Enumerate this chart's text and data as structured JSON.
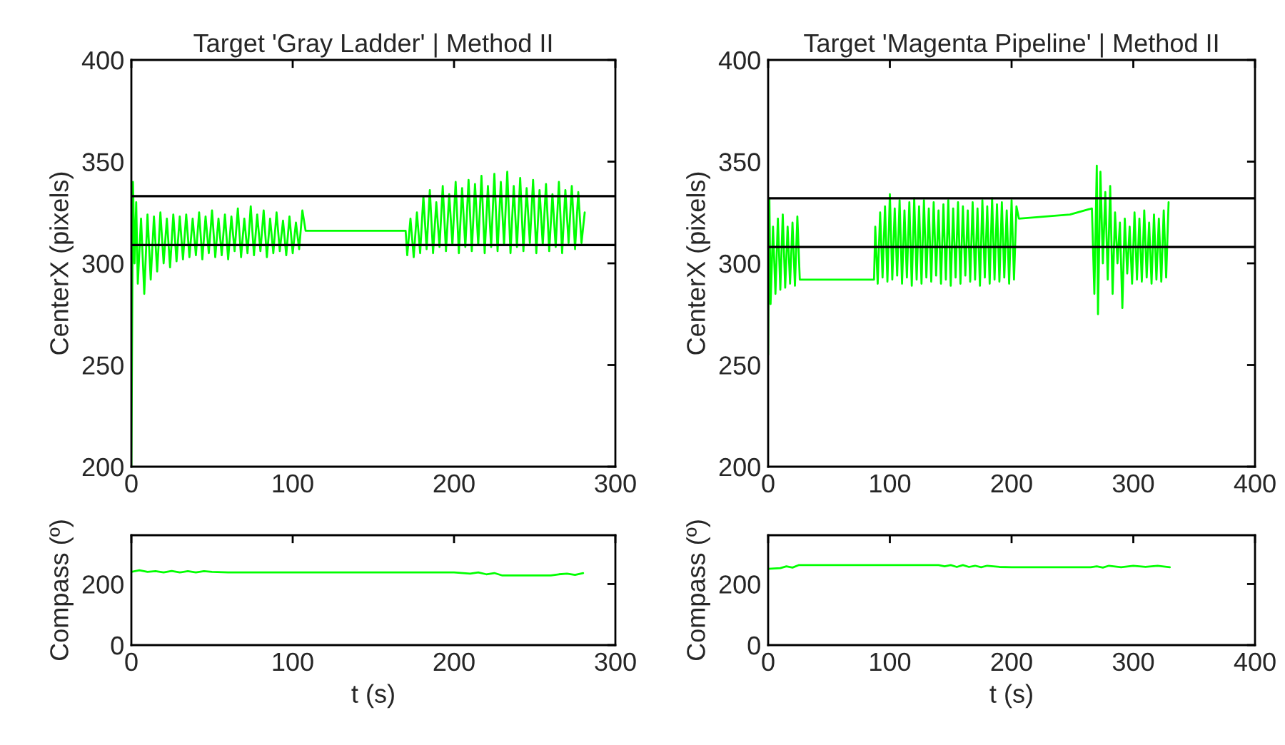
{
  "chart_data": [
    {
      "type": "line",
      "title": "Target 'Gray Ladder' | Method II",
      "ylabel": "CenterX (pixels)",
      "xlim": [
        0,
        300
      ],
      "xticks": [
        0,
        100,
        200,
        300
      ],
      "ylim": [
        200,
        400
      ],
      "yticks": [
        200,
        250,
        300,
        350,
        400
      ],
      "grid": false,
      "ref_lines": [
        {
          "axis": "y",
          "value": 333,
          "color": "#000000"
        },
        {
          "axis": "y",
          "value": 309,
          "color": "#000000"
        }
      ],
      "series": [
        {
          "color": "#00ff00",
          "x": [
            0,
            1,
            2,
            3,
            4,
            6,
            8,
            10,
            12,
            14,
            16,
            18,
            20,
            22,
            24,
            26,
            28,
            30,
            32,
            34,
            36,
            38,
            40,
            42,
            44,
            46,
            48,
            50,
            52,
            54,
            56,
            58,
            60,
            62,
            64,
            66,
            68,
            70,
            72,
            74,
            76,
            78,
            80,
            82,
            84,
            86,
            88,
            90,
            92,
            94,
            96,
            98,
            100,
            102,
            104,
            106,
            108,
            170,
            171,
            173,
            175,
            177,
            179,
            181,
            183,
            185,
            187,
            189,
            191,
            193,
            195,
            197,
            199,
            201,
            203,
            205,
            207,
            209,
            211,
            213,
            215,
            217,
            219,
            221,
            223,
            225,
            227,
            229,
            231,
            233,
            235,
            237,
            239,
            241,
            243,
            245,
            247,
            249,
            251,
            253,
            255,
            257,
            259,
            261,
            263,
            265,
            267,
            269,
            271,
            273,
            275,
            277,
            279,
            281
          ],
          "values": [
            200,
            340,
            300,
            330,
            290,
            322,
            285,
            324,
            292,
            323,
            296,
            325,
            300,
            322,
            298,
            324,
            301,
            323,
            302,
            324,
            303,
            322,
            304,
            325,
            302,
            323,
            305,
            326,
            303,
            322,
            304,
            324,
            302,
            323,
            306,
            327,
            303,
            322,
            305,
            328,
            304,
            324,
            306,
            326,
            303,
            322,
            305,
            325,
            306,
            321,
            304,
            323,
            305,
            320,
            307,
            326,
            316,
            316,
            304,
            322,
            303,
            325,
            305,
            333,
            307,
            336,
            305,
            330,
            308,
            338,
            306,
            334,
            309,
            340,
            305,
            337,
            308,
            341,
            306,
            339,
            309,
            343,
            305,
            338,
            308,
            344,
            306,
            340,
            309,
            345,
            305,
            338,
            308,
            342,
            306,
            337,
            310,
            341,
            305,
            336,
            309,
            339,
            306,
            334,
            308,
            340,
            305,
            336,
            310,
            338,
            307,
            335,
            310,
            325
          ]
        }
      ]
    },
    {
      "type": "line",
      "title": "Target 'Magenta Pipeline' | Method II",
      "ylabel": "CenterX (pixels)",
      "xlim": [
        0,
        400
      ],
      "xticks": [
        0,
        100,
        200,
        300,
        400
      ],
      "ylim": [
        200,
        400
      ],
      "yticks": [
        200,
        250,
        300,
        350,
        400
      ],
      "grid": false,
      "ref_lines": [
        {
          "axis": "y",
          "value": 332,
          "color": "#000000"
        },
        {
          "axis": "y",
          "value": 308,
          "color": "#000000"
        }
      ],
      "series": [
        {
          "color": "#00ff00",
          "x": [
            0,
            1,
            2,
            4,
            6,
            8,
            10,
            12,
            14,
            16,
            18,
            20,
            22,
            24,
            26,
            87,
            88,
            90,
            92,
            94,
            96,
            98,
            100,
            102,
            104,
            106,
            108,
            110,
            112,
            114,
            116,
            118,
            120,
            122,
            124,
            126,
            128,
            130,
            132,
            134,
            136,
            138,
            140,
            142,
            144,
            146,
            148,
            150,
            152,
            154,
            156,
            158,
            160,
            162,
            164,
            166,
            168,
            170,
            172,
            174,
            176,
            178,
            180,
            182,
            184,
            186,
            188,
            190,
            192,
            194,
            196,
            198,
            200,
            202,
            204,
            206,
            248,
            266,
            268,
            270,
            271,
            273,
            275,
            277,
            279,
            281,
            283,
            285,
            287,
            289,
            291,
            293,
            295,
            297,
            299,
            301,
            303,
            305,
            307,
            309,
            311,
            313,
            315,
            317,
            319,
            321,
            323,
            325,
            327,
            329
          ],
          "values": [
            255,
            332,
            280,
            318,
            285,
            322,
            287,
            324,
            288,
            318,
            290,
            320,
            289,
            323,
            292,
            292,
            318,
            290,
            325,
            293,
            328,
            291,
            334,
            292,
            327,
            294,
            331,
            290,
            326,
            293,
            330,
            289,
            332,
            292,
            328,
            290,
            331,
            293,
            327,
            291,
            330,
            294,
            326,
            290,
            329,
            292,
            331,
            289,
            327,
            293,
            330,
            290,
            328,
            294,
            326,
            291,
            330,
            292,
            327,
            289,
            331,
            293,
            328,
            290,
            332,
            292,
            329,
            291,
            330,
            293,
            326,
            290,
            331,
            292,
            328,
            322,
            324,
            327,
            285,
            348,
            275,
            345,
            300,
            335,
            292,
            338,
            285,
            325,
            300,
            320,
            278,
            322,
            295,
            318,
            290,
            325,
            292,
            322,
            291,
            326,
            293,
            320,
            290,
            324,
            292,
            322,
            291,
            326,
            293,
            330
          ]
        }
      ]
    },
    {
      "type": "line",
      "xlabel": "t (s)",
      "ylabel": "Compass (º)",
      "xlim": [
        0,
        300
      ],
      "xticks": [
        0,
        100,
        200,
        300
      ],
      "ylim": [
        0,
        360
      ],
      "yticks": [
        0,
        200
      ],
      "grid": false,
      "series": [
        {
          "color": "#00ff00",
          "x": [
            0,
            5,
            10,
            15,
            20,
            25,
            30,
            35,
            40,
            45,
            50,
            60,
            100,
            150,
            200,
            210,
            215,
            220,
            225,
            230,
            260,
            265,
            270,
            275,
            280
          ],
          "values": [
            240,
            245,
            240,
            242,
            238,
            243,
            238,
            242,
            238,
            242,
            240,
            238,
            238,
            238,
            238,
            234,
            238,
            232,
            236,
            228,
            228,
            232,
            234,
            230,
            236
          ]
        }
      ]
    },
    {
      "type": "line",
      "xlabel": "t (s)",
      "ylabel": "Compass (º)",
      "xlim": [
        0,
        400
      ],
      "xticks": [
        0,
        100,
        200,
        300,
        400
      ],
      "ylim": [
        0,
        360
      ],
      "yticks": [
        0,
        200
      ],
      "grid": false,
      "series": [
        {
          "color": "#00ff00",
          "x": [
            0,
            10,
            15,
            20,
            25,
            30,
            140,
            145,
            150,
            155,
            160,
            165,
            170,
            175,
            180,
            190,
            200,
            265,
            270,
            275,
            280,
            290,
            300,
            310,
            320,
            330
          ],
          "values": [
            250,
            252,
            258,
            254,
            262,
            262,
            262,
            258,
            262,
            256,
            262,
            256,
            260,
            255,
            260,
            256,
            255,
            255,
            258,
            254,
            260,
            255,
            260,
            256,
            260,
            255
          ]
        }
      ]
    }
  ]
}
